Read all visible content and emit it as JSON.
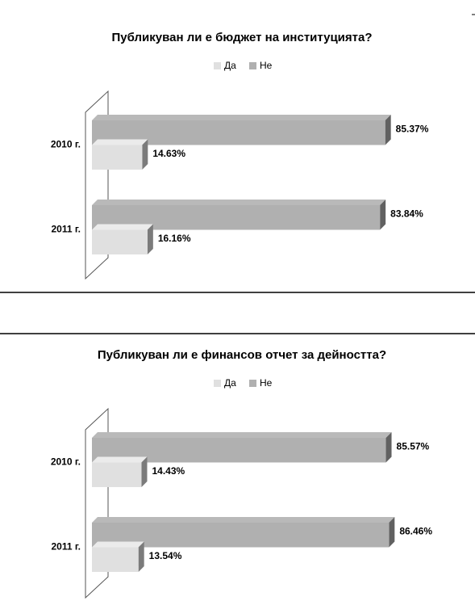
{
  "chart_data": [
    {
      "type": "bar",
      "orientation": "horizontal",
      "title": "Публикуван ли е бюджет на институцията?",
      "categories": [
        "2010 г.",
        "2011 г."
      ],
      "series": [
        {
          "name": "Да",
          "color": "#e0e0e0",
          "values": [
            14.63,
            16.16
          ],
          "value_labels": [
            "14.63%",
            "16.16%"
          ]
        },
        {
          "name": "Не",
          "color": "#b0b0b0",
          "values": [
            85.37,
            83.84
          ],
          "value_labels": [
            "85.37%",
            "83.84%"
          ]
        }
      ]
    },
    {
      "type": "bar",
      "orientation": "horizontal",
      "title": "Публикуван ли е финансов отчет за дейността?",
      "categories": [
        "2010 г.",
        "2011 г."
      ],
      "series": [
        {
          "name": "Да",
          "color": "#e0e0e0",
          "values": [
            14.43,
            13.54
          ],
          "value_labels": [
            "14.43%",
            "13.54%"
          ]
        },
        {
          "name": "Не",
          "color": "#b0b0b0",
          "values": [
            85.57,
            86.46
          ],
          "value_labels": [
            "85.57%",
            "86.46%"
          ]
        }
      ]
    }
  ]
}
